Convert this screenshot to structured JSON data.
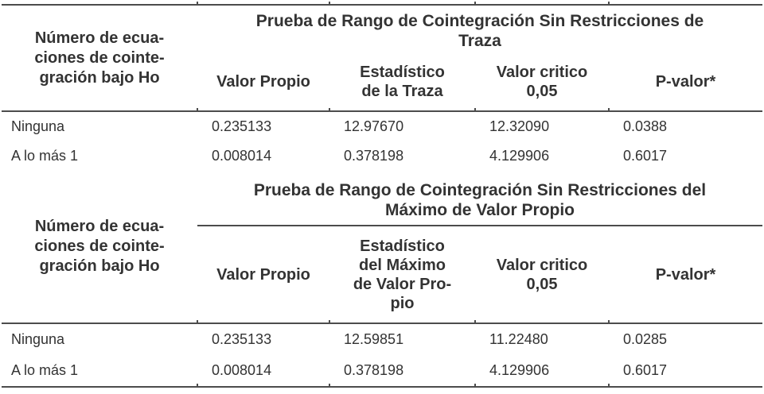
{
  "document": {
    "kind": "cointegration-test-results-table",
    "language": "es"
  },
  "colors": {
    "text": "#333333",
    "line": "#4c4c4c",
    "background": "#ffffff"
  },
  "tables": [
    {
      "span_title": "Prueba de Rango de Cointegración Sin Restricciones de\nTraza",
      "row_header": "Número de ecua-\nciones de cointe-\ngración bajo Ho",
      "columns": [
        "Valor Propio",
        "Estadístico\nde la Traza",
        "Valor critico\n0,05",
        "P-valor*"
      ],
      "rows": [
        [
          "Ninguna",
          "0.235133",
          "12.97670",
          "12.32090",
          "0.0388"
        ],
        [
          "A lo más 1",
          "0.008014",
          "0.378198",
          "4.129906",
          "0.6017"
        ]
      ]
    },
    {
      "span_title": "Prueba de Rango de Cointegración Sin Restricciones del\nMáximo de Valor Propio",
      "row_header": "Número de ecua-\nciones de cointe-\ngración bajo Ho",
      "columns": [
        "Valor Propio",
        "Estadístico\ndel Máximo\nde Valor Pro-\npio",
        "Valor critico\n0,05",
        "P-valor*"
      ],
      "rows": [
        [
          "Ninguna",
          "0.235133",
          "12.59851",
          "11.22480",
          "0.0285"
        ],
        [
          "A lo más 1",
          "0.008014",
          "0.378198",
          "4.129906",
          "0.6017"
        ]
      ]
    }
  ]
}
